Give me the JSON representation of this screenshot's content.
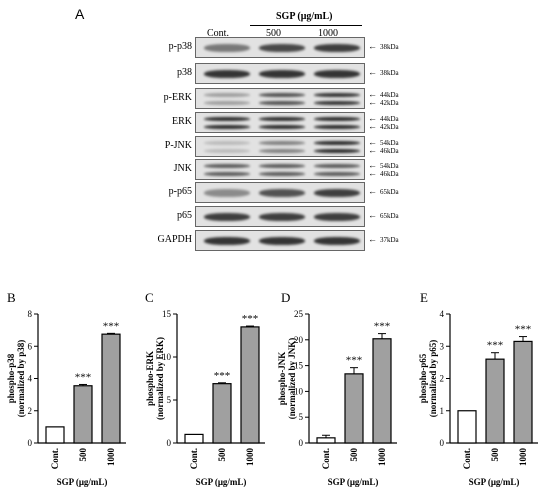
{
  "panel_A": {
    "letter": "A",
    "group_header": "SGP (μg/mL)",
    "columns": [
      "Cont.",
      "500",
      "1000"
    ],
    "rows": [
      {
        "label": "p-p38",
        "kda": [
          "38kDa"
        ],
        "bands": [
          0.55,
          0.8,
          0.85
        ]
      },
      {
        "label": "p38",
        "kda": [
          "38kDa"
        ],
        "bands": [
          0.9,
          0.9,
          0.9
        ]
      },
      {
        "label": "p-ERK",
        "kda": [
          "44kDa",
          "42kDa"
        ],
        "bands": [
          0.35,
          0.75,
          0.9
        ]
      },
      {
        "label": "ERK",
        "kda": [
          "44kDa",
          "42kDa"
        ],
        "bands": [
          0.95,
          0.95,
          0.95
        ]
      },
      {
        "label": "P-JNK",
        "kda": [
          "54kDa",
          "46kDa"
        ],
        "bands": [
          0.2,
          0.5,
          0.95
        ]
      },
      {
        "label": "JNK",
        "kda": [
          "54kDa",
          "46kDa"
        ],
        "bands": [
          0.7,
          0.7,
          0.7
        ]
      },
      {
        "label": "p-p65",
        "kda": [
          "65kDa"
        ],
        "bands": [
          0.45,
          0.75,
          0.85
        ]
      },
      {
        "label": "p65",
        "kda": [
          "65kDa"
        ],
        "bands": [
          0.85,
          0.85,
          0.85
        ]
      },
      {
        "label": "GAPDH",
        "kda": [
          "37kDa"
        ],
        "bands": [
          0.9,
          0.9,
          0.9
        ]
      }
    ]
  },
  "chart_data": [
    {
      "type": "bar",
      "letter": "B",
      "categories": [
        "Cont.",
        "500",
        "1000"
      ],
      "values": [
        1,
        3.55,
        6.75
      ],
      "errors": [
        0,
        0.08,
        0.05
      ],
      "ylabel_line1": "phospho-p38",
      "ylabel_line2": "(normalized by p38)",
      "xlabel": "SGP (μg/mL)",
      "ylim": [
        0,
        8
      ],
      "yticks": [
        0,
        2,
        4,
        6,
        8
      ],
      "significance": [
        "",
        "***",
        "***"
      ]
    },
    {
      "type": "bar",
      "letter": "C",
      "categories": [
        "Cont.",
        "500",
        "1000"
      ],
      "values": [
        1,
        6.9,
        13.5
      ],
      "errors": [
        0,
        0.1,
        0.1
      ],
      "ylabel_line1": "phospho-ERK",
      "ylabel_line2": "(normalized by ERK)",
      "xlabel": "SGP (μg/mL)",
      "ylim": [
        0,
        15
      ],
      "yticks": [
        0,
        5,
        10,
        15
      ],
      "significance": [
        "",
        "***",
        "***"
      ]
    },
    {
      "type": "bar",
      "letter": "D",
      "categories": [
        "Cont.",
        "500",
        "1000"
      ],
      "values": [
        1,
        13.4,
        20.2
      ],
      "errors": [
        0.5,
        1.2,
        1.0
      ],
      "ylabel_line1": "phospho-JNK",
      "ylabel_line2": "(normalized by JNK)",
      "xlabel": "SGP (μg/mL)",
      "ylim": [
        0,
        25
      ],
      "yticks": [
        0,
        5,
        10,
        15,
        20,
        25
      ],
      "significance": [
        "",
        "***",
        "***"
      ]
    },
    {
      "type": "bar",
      "letter": "E",
      "categories": [
        "Cont.",
        "500",
        "1000"
      ],
      "values": [
        1,
        2.6,
        3.15
      ],
      "errors": [
        0,
        0.2,
        0.15
      ],
      "ylabel_line1": "phospho-p65",
      "ylabel_line2": "(normalized by p65)",
      "xlabel": "SGP (μg/mL)",
      "ylim": [
        0,
        4
      ],
      "yticks": [
        0,
        1,
        2,
        3,
        4
      ],
      "significance": [
        "",
        "***",
        "***"
      ]
    }
  ],
  "colors": {
    "control_bar": "#ffffff",
    "treated_bar": "#a0a0a0",
    "outline": "#000000"
  }
}
